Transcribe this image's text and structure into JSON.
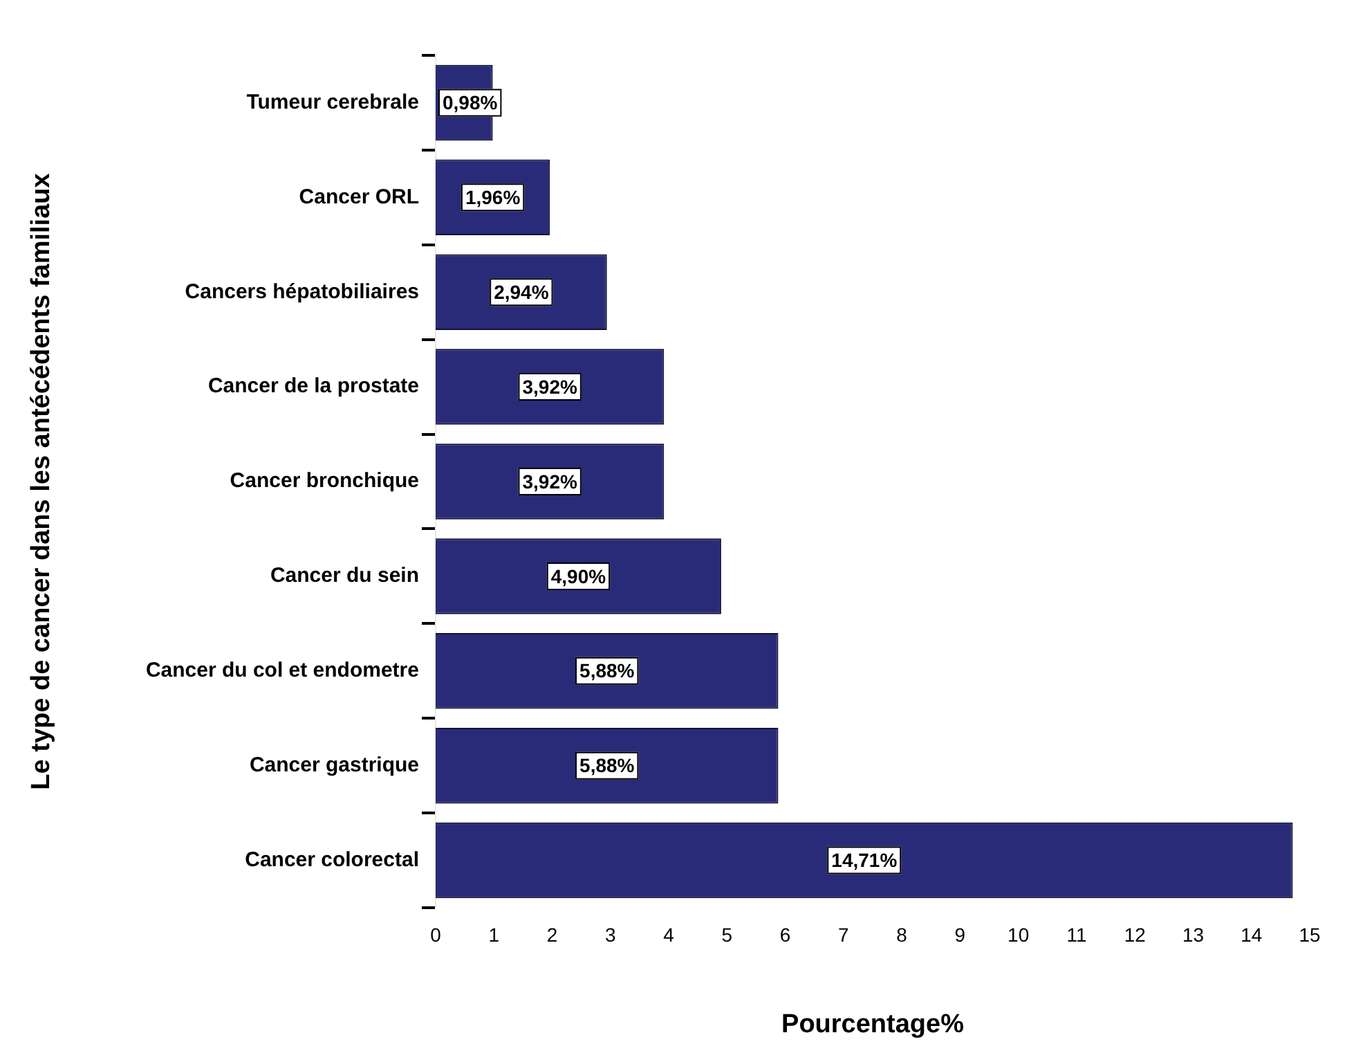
{
  "chart_data": {
    "type": "bar",
    "orientation": "horizontal",
    "xlabel": "Pourcentage%",
    "ylabel": "Le type de cancer dans les antécédents familiaux",
    "categories": [
      "Tumeur cerebrale",
      "Cancer ORL",
      "Cancers hépatobiliaires",
      "Cancer de la prostate",
      "Cancer bronchique",
      "Cancer du sein",
      "Cancer du col et endometre",
      "Cancer gastrique",
      "Cancer colorectal"
    ],
    "values": [
      0.98,
      1.96,
      2.94,
      3.92,
      3.92,
      4.9,
      5.88,
      5.88,
      14.71
    ],
    "value_labels": [
      "0,98%",
      "1,96%",
      "2,94%",
      "3,92%",
      "3,92%",
      "4,90%",
      "5,88%",
      "5,88%",
      "14,71%"
    ],
    "color": "#2a2b78",
    "xlim": [
      0,
      15
    ],
    "xticks": [
      0,
      1,
      2,
      3,
      4,
      5,
      6,
      7,
      8,
      9,
      10,
      11,
      12,
      13,
      14,
      15
    ],
    "grid": false,
    "legend": false
  }
}
